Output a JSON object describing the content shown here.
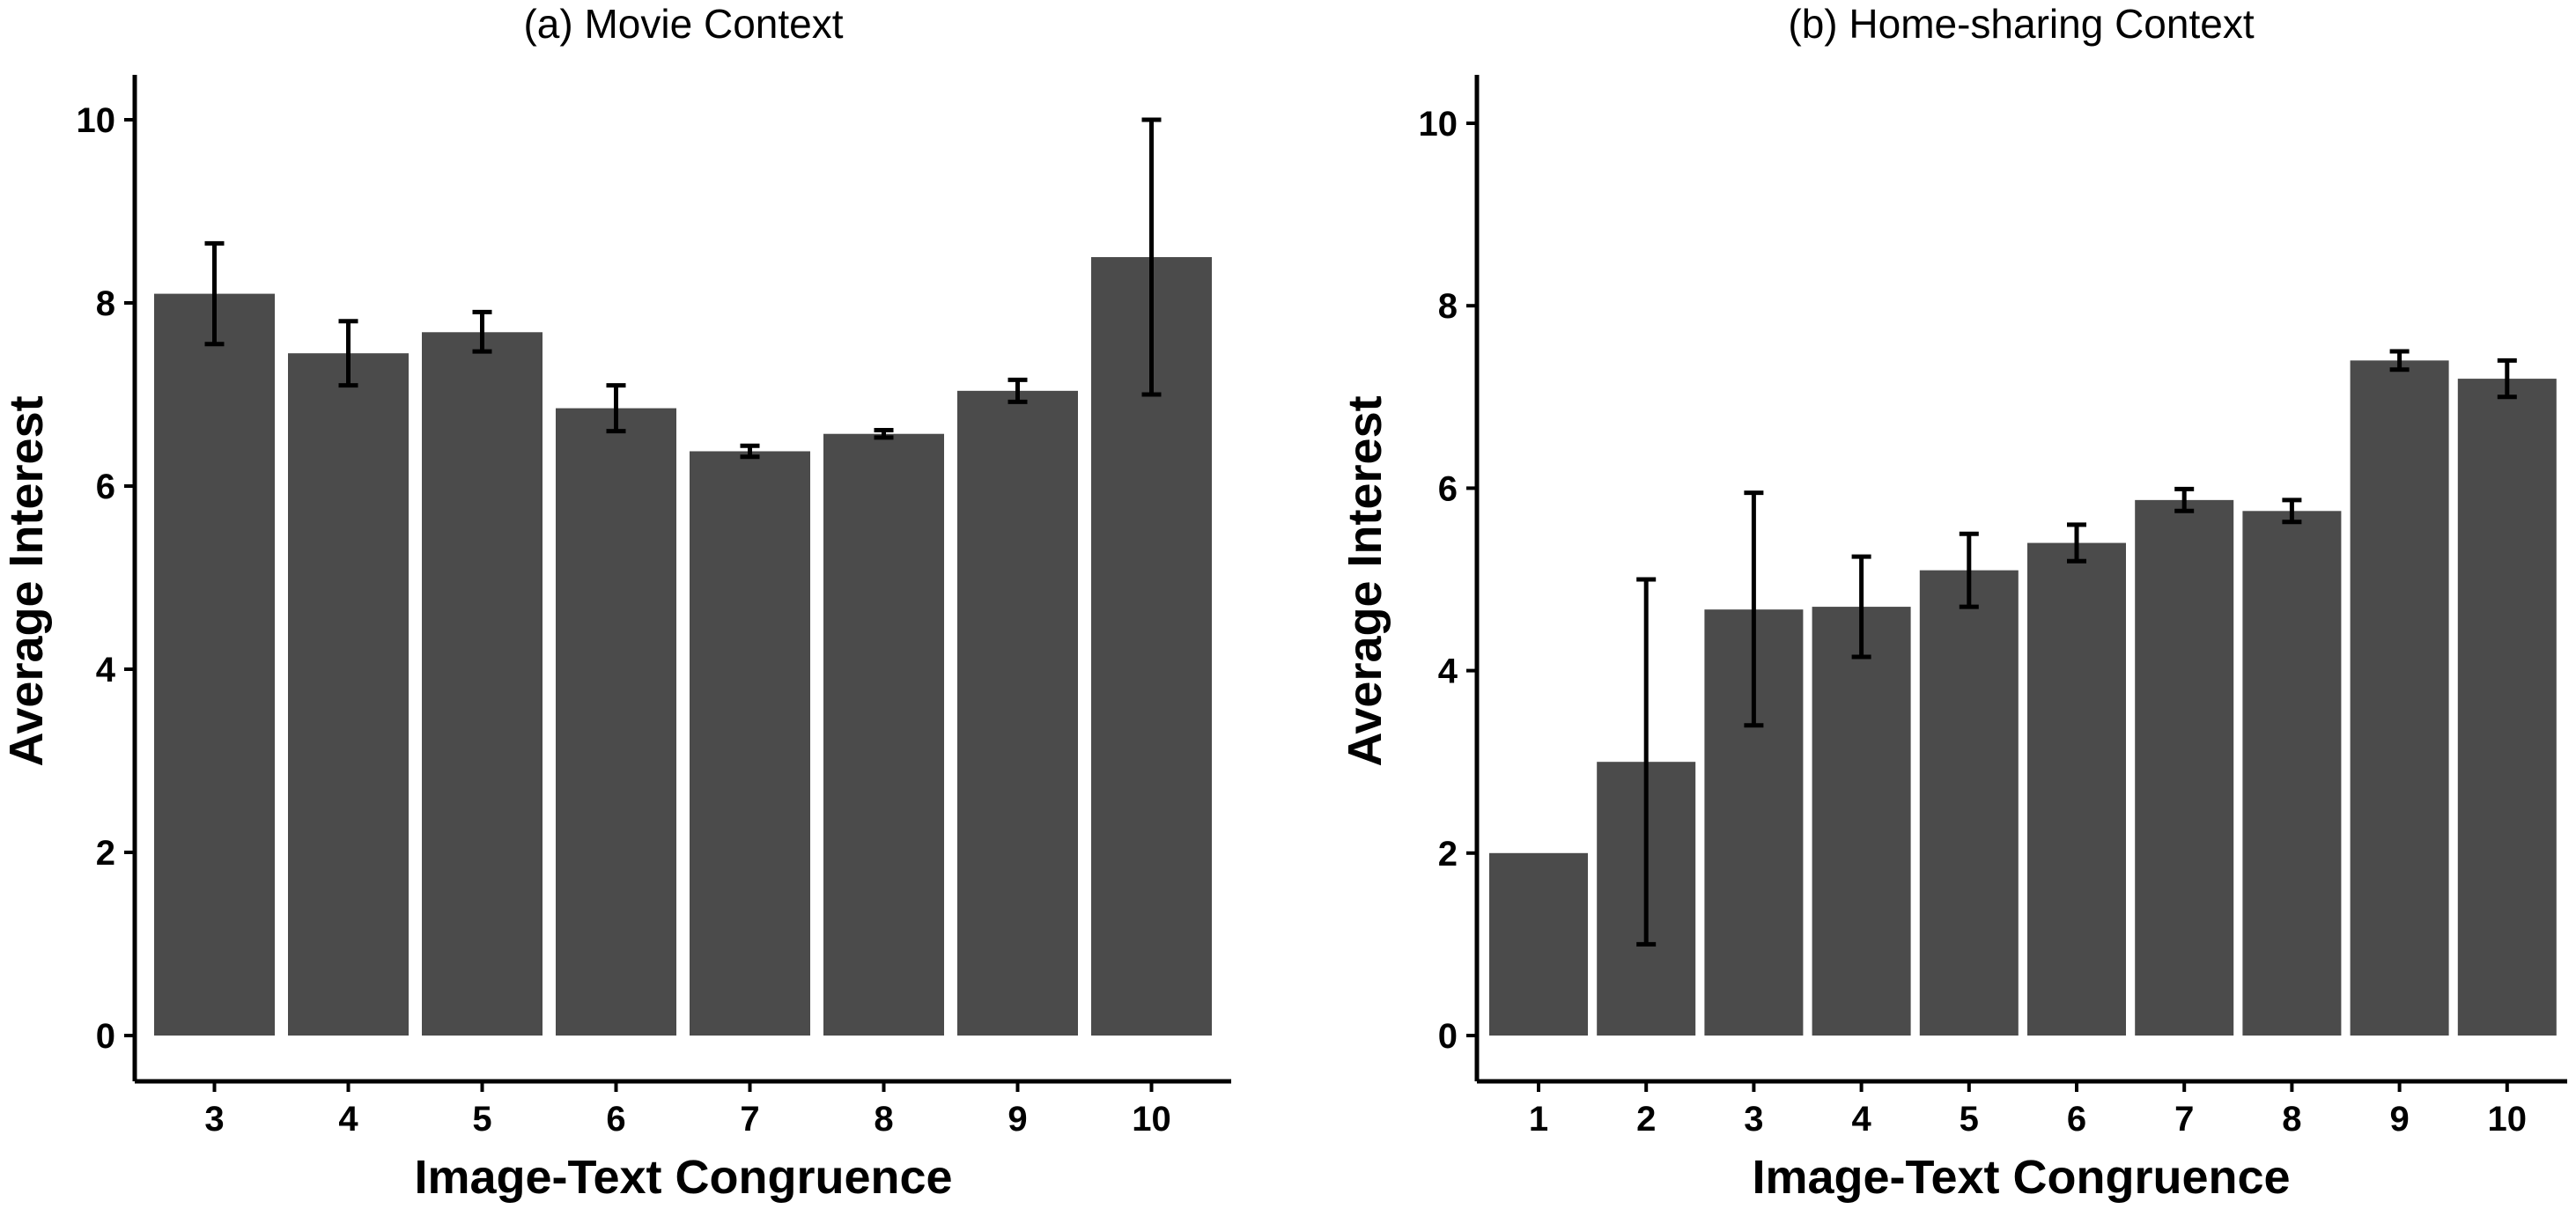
{
  "chart_data": [
    {
      "type": "bar",
      "title": "(a) Movie Context",
      "xlabel": "Image-Text Congruence",
      "ylabel": "Average Interest",
      "ylim": [
        0,
        10.5
      ],
      "yticks": [
        0,
        2,
        4,
        6,
        8,
        10
      ],
      "categories": [
        "3",
        "4",
        "5",
        "6",
        "7",
        "8",
        "9",
        "10"
      ],
      "values": [
        8.1,
        7.45,
        7.68,
        6.85,
        6.38,
        6.57,
        7.04,
        8.5
      ],
      "error_low": [
        7.55,
        7.1,
        7.47,
        6.6,
        6.32,
        6.53,
        6.92,
        7.0
      ],
      "error_high": [
        8.65,
        7.8,
        7.9,
        7.1,
        6.44,
        6.61,
        7.16,
        10.0
      ],
      "grid": false,
      "bar_color": "#4b4b4b"
    },
    {
      "type": "bar",
      "title": "(b) Home-sharing Context",
      "xlabel": "Image-Text Congruence",
      "ylabel": "Average Interest",
      "ylim": [
        0,
        10.5
      ],
      "yticks": [
        0,
        2,
        4,
        6,
        8,
        10
      ],
      "categories": [
        "1",
        "2",
        "3",
        "4",
        "5",
        "6",
        "7",
        "8",
        "9",
        "10"
      ],
      "values": [
        2.0,
        3.0,
        4.67,
        4.7,
        5.1,
        5.4,
        5.87,
        5.75,
        7.4,
        7.2
      ],
      "error_low": [
        null,
        1.0,
        3.4,
        4.15,
        4.7,
        5.2,
        5.75,
        5.63,
        7.3,
        7.0
      ],
      "error_high": [
        null,
        5.0,
        5.95,
        5.25,
        5.5,
        5.6,
        5.99,
        5.87,
        7.5,
        7.4
      ],
      "grid": false,
      "bar_color": "#4b4b4b"
    }
  ]
}
